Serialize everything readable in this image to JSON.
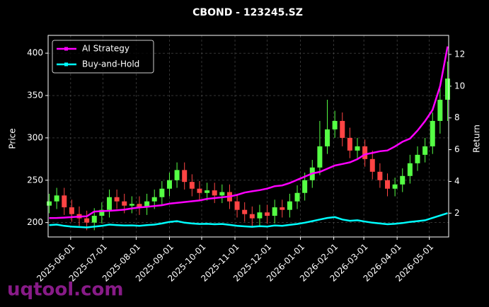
{
  "chart_data": {
    "type": "candlestick",
    "title": "CBOND - 123245.SZ",
    "x": [
      "2025-05-12",
      "2025-05-19",
      "2025-05-26",
      "2025-06-02",
      "2025-06-09",
      "2025-06-16",
      "2025-06-23",
      "2025-06-30",
      "2025-07-07",
      "2025-07-14",
      "2025-07-21",
      "2025-07-28",
      "2025-08-04",
      "2025-08-11",
      "2025-08-18",
      "2025-08-25",
      "2025-09-01",
      "2025-09-08",
      "2025-09-15",
      "2025-09-22",
      "2025-09-29",
      "2025-10-06",
      "2025-10-13",
      "2025-10-20",
      "2025-10-27",
      "2025-11-03",
      "2025-11-10",
      "2025-11-17",
      "2025-11-24",
      "2025-12-01",
      "2025-12-08",
      "2025-12-15",
      "2025-12-22",
      "2025-12-29",
      "2026-01-05",
      "2026-01-12",
      "2026-01-19",
      "2026-01-26",
      "2026-02-02",
      "2026-02-09",
      "2026-02-16",
      "2026-02-23",
      "2026-03-02",
      "2026-03-09",
      "2026-03-16",
      "2026-03-23",
      "2026-03-30",
      "2026-04-06",
      "2026-04-13",
      "2026-04-20",
      "2026-04-27",
      "2026-05-04",
      "2026-05-11",
      "2026-05-18"
    ],
    "open": [
      220,
      225,
      232,
      218,
      210,
      205,
      200,
      208,
      215,
      230,
      225,
      220,
      222,
      218,
      225,
      230,
      240,
      250,
      262,
      248,
      240,
      235,
      238,
      232,
      236,
      225,
      215,
      210,
      205,
      212,
      208,
      218,
      215,
      225,
      235,
      250,
      265,
      290,
      310,
      320,
      300,
      285,
      290,
      275,
      260,
      250,
      240,
      245,
      255,
      270,
      280,
      290,
      320,
      345
    ],
    "high": [
      234,
      241,
      241,
      227,
      219,
      214,
      217,
      224,
      239,
      239,
      234,
      231,
      231,
      234,
      239,
      249,
      259,
      271,
      271,
      257,
      249,
      247,
      247,
      245,
      245,
      234,
      224,
      219,
      221,
      221,
      227,
      227,
      234,
      244,
      259,
      274,
      320,
      345,
      332,
      330,
      312,
      300,
      298,
      285,
      270,
      258,
      253,
      264,
      280,
      290,
      300,
      330,
      360,
      390
    ],
    "low": [
      211,
      216,
      209,
      201,
      196,
      191,
      191,
      199,
      206,
      216,
      211,
      211,
      209,
      209,
      216,
      221,
      231,
      241,
      239,
      231,
      226,
      226,
      223,
      223,
      216,
      206,
      201,
      196,
      196,
      199,
      199,
      206,
      206,
      216,
      226,
      241,
      256,
      281,
      300,
      290,
      276,
      276,
      266,
      251,
      241,
      231,
      231,
      236,
      246,
      261,
      271,
      281,
      305,
      320
    ],
    "close": [
      225,
      232,
      218,
      210,
      205,
      200,
      208,
      215,
      230,
      225,
      220,
      222,
      218,
      225,
      230,
      240,
      250,
      262,
      248,
      240,
      235,
      238,
      232,
      236,
      225,
      215,
      210,
      205,
      212,
      208,
      218,
      215,
      225,
      235,
      250,
      265,
      290,
      310,
      320,
      300,
      285,
      290,
      275,
      260,
      250,
      240,
      245,
      255,
      270,
      280,
      290,
      320,
      345,
      370
    ],
    "up_color": "#55ff44",
    "down_color": "#ff4444",
    "series": [
      {
        "name": "AI Strategy",
        "color": "#ff00ff",
        "axis": "y2",
        "values": [
          1.69,
          1.7,
          1.72,
          1.75,
          1.78,
          1.8,
          2.1,
          2.13,
          2.15,
          2.18,
          2.22,
          2.3,
          2.36,
          2.4,
          2.45,
          2.5,
          2.6,
          2.65,
          2.7,
          2.75,
          2.8,
          2.9,
          2.95,
          3.0,
          3.05,
          3.15,
          3.3,
          3.38,
          3.45,
          3.55,
          3.7,
          3.75,
          3.9,
          4.1,
          4.3,
          4.5,
          4.6,
          4.8,
          5.0,
          5.1,
          5.2,
          5.4,
          5.7,
          5.8,
          5.9,
          5.95,
          6.2,
          6.5,
          6.7,
          7.2,
          7.8,
          8.5,
          10.0,
          12.5
        ]
      },
      {
        "name": "Buy-and-Hold",
        "color": "#00ffff",
        "axis": "y2",
        "values": [
          1.25,
          1.28,
          1.2,
          1.15,
          1.13,
          1.1,
          1.15,
          1.2,
          1.28,
          1.25,
          1.22,
          1.23,
          1.2,
          1.25,
          1.28,
          1.35,
          1.45,
          1.5,
          1.4,
          1.35,
          1.32,
          1.33,
          1.3,
          1.32,
          1.26,
          1.2,
          1.17,
          1.14,
          1.18,
          1.16,
          1.22,
          1.2,
          1.26,
          1.32,
          1.4,
          1.5,
          1.6,
          1.7,
          1.75,
          1.6,
          1.52,
          1.55,
          1.47,
          1.4,
          1.35,
          1.3,
          1.33,
          1.38,
          1.45,
          1.5,
          1.55,
          1.7,
          1.85,
          2.0
        ]
      }
    ],
    "xlim": [
      "2025-05-11",
      "2026-05-19"
    ],
    "xticks": [
      "2025-06-01",
      "2025-07-01",
      "2025-08-01",
      "2025-09-01",
      "2025-10-01",
      "2025-11-01",
      "2025-12-01",
      "2026-01-01",
      "2026-02-01",
      "2026-03-01",
      "2026-04-01",
      "2026-05-01"
    ],
    "ylim": [
      183,
      421
    ],
    "yticks": [
      200,
      250,
      300,
      350,
      400
    ],
    "y2lim": [
      0.5,
      13.2
    ],
    "y2ticks": [
      2,
      4,
      6,
      8,
      10,
      12
    ],
    "ylabel": "Price",
    "y2label": "Return",
    "grid": true,
    "legend": "upper left"
  },
  "watermark": "uqtool.com"
}
